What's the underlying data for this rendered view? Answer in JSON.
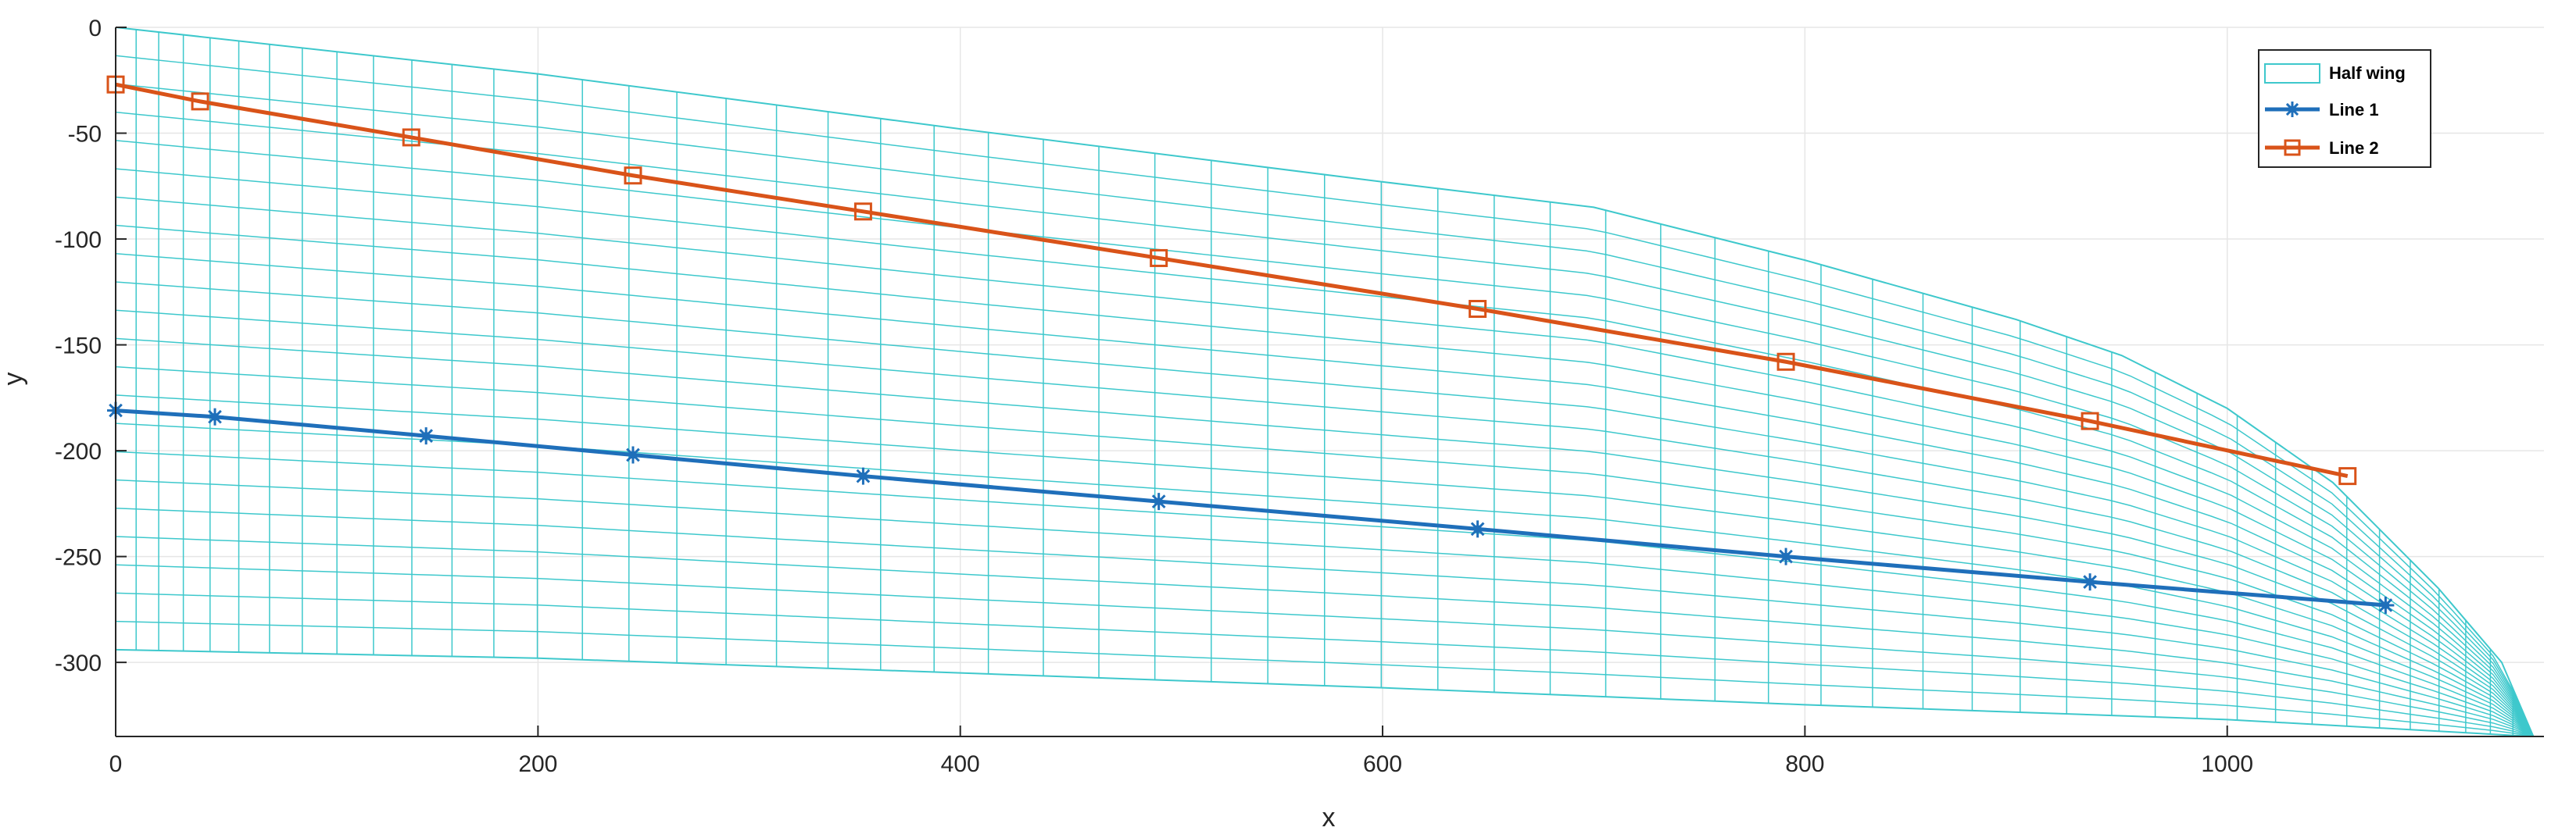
{
  "chart_data": {
    "type": "line",
    "title": "",
    "xlabel": "x",
    "ylabel": "y",
    "xlim": [
      0,
      1150
    ],
    "ylim": [
      -335,
      0
    ],
    "xticks": [
      0,
      200,
      400,
      600,
      800,
      1000
    ],
    "yticks": [
      0,
      -50,
      -100,
      -150,
      -200,
      -250,
      -300
    ],
    "xtick_labels": [
      "0",
      "200",
      "400",
      "600",
      "800",
      "1000"
    ],
    "ytick_labels": [
      "0",
      "-50",
      "-100",
      "-150",
      "-200",
      "-250",
      "-300"
    ],
    "grid": true,
    "legend_position": "top-right",
    "colors": {
      "half_wing": "#3ec8cc",
      "line1": "#1f6fba",
      "line2": "#d95319",
      "grid": "#e6e6e6",
      "axis": "#262626"
    },
    "half_wing": {
      "name": "Half wing",
      "leading_edge": [
        [
          0,
          0
        ],
        [
          200,
          -22
        ],
        [
          400,
          -48
        ],
        [
          600,
          -73
        ],
        [
          700,
          -85
        ],
        [
          800,
          -110
        ],
        [
          900,
          -138
        ],
        [
          950,
          -155
        ],
        [
          1000,
          -180
        ],
        [
          1050,
          -215
        ],
        [
          1100,
          -265
        ],
        [
          1130,
          -300
        ],
        [
          1145,
          -335
        ]
      ],
      "trailing_edge": [
        [
          0,
          -294
        ],
        [
          200,
          -298
        ],
        [
          400,
          -305
        ],
        [
          600,
          -312
        ],
        [
          800,
          -320
        ],
        [
          1000,
          -327
        ],
        [
          1145,
          -335
        ]
      ],
      "spanwise_lines": 22,
      "chordwise_lines": 56
    },
    "series": [
      {
        "name": "Line 1",
        "marker": "asterisk",
        "x": [
          0,
          47,
          147,
          245,
          354,
          494,
          645,
          791,
          935,
          1075
        ],
        "y": [
          -181,
          -184,
          -193,
          -202,
          -212,
          -224,
          -237,
          -250,
          -262,
          -273
        ]
      },
      {
        "name": "Line 2",
        "marker": "square",
        "x": [
          0,
          40,
          140,
          245,
          354,
          494,
          645,
          791,
          935,
          1057
        ],
        "y": [
          -27,
          -35,
          -52,
          -70,
          -87,
          -109,
          -133,
          -158,
          -186,
          -212
        ]
      }
    ]
  }
}
